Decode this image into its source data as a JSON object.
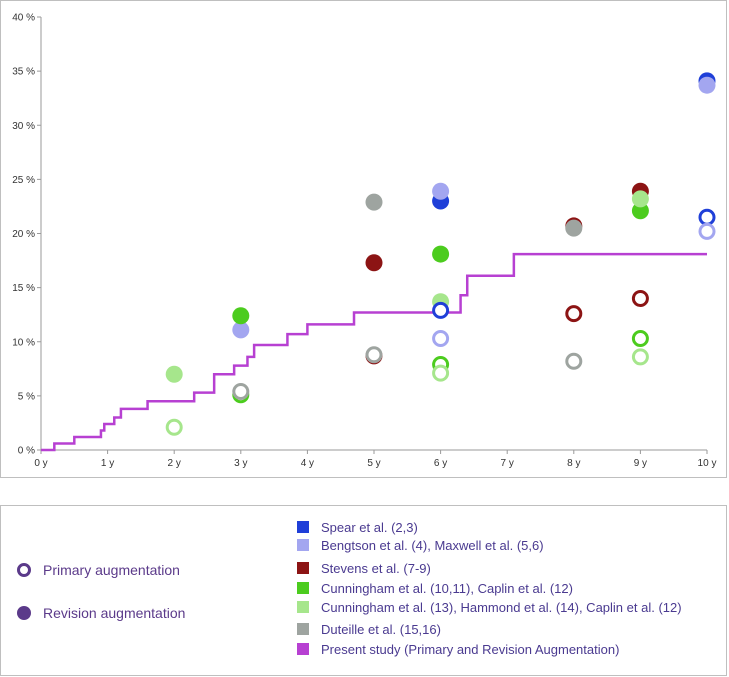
{
  "chart_data": {
    "type": "scatter",
    "x_ticks": [
      "0 y",
      "1 y",
      "2 y",
      "3 y",
      "4 y",
      "5 y",
      "6 y",
      "7 y",
      "8 y",
      "9 y",
      "10 y"
    ],
    "y_ticks": [
      "0 %",
      "5 %",
      "10 %",
      "15 %",
      "20 %",
      "25 %",
      "30 %",
      "35 %",
      "40 %"
    ],
    "xlim": [
      0,
      10
    ],
    "ylim": [
      0,
      40
    ],
    "marker_legend": [
      {
        "label": "Primary augmentation",
        "style": "hollow",
        "color": "#5b3a8a"
      },
      {
        "label": "Revision augmentation",
        "style": "filled",
        "color": "#5b3a8a"
      }
    ],
    "sources": [
      {
        "name": "Spear et al. (2,3)",
        "color": "#1f3fd8",
        "primary": [
          [
            6,
            12.9
          ],
          [
            10,
            21.5
          ]
        ],
        "revision": [
          [
            6,
            23.0
          ],
          [
            10,
            34.1
          ]
        ]
      },
      {
        "name": "Bengtson et al. (4), Maxwell et al. (5,6)",
        "color": "#a3a6f0",
        "primary": [
          [
            6,
            10.3
          ],
          [
            10,
            20.2
          ]
        ],
        "revision": [
          [
            3,
            11.1
          ],
          [
            6,
            23.9
          ],
          [
            10,
            33.7
          ]
        ]
      },
      {
        "name": "Stevens et al. (7-9)",
        "color": "#8c1414",
        "primary": [
          [
            5,
            8.7
          ],
          [
            8,
            12.6
          ],
          [
            9,
            14.0
          ]
        ],
        "revision": [
          [
            5,
            17.3
          ],
          [
            8,
            20.7
          ],
          [
            9,
            23.9
          ]
        ]
      },
      {
        "name": "Cunningham et al. (10,11), Caplin et al. (12)",
        "color": "#4ccc1e",
        "primary": [
          [
            3,
            5.1
          ],
          [
            6,
            7.9
          ],
          [
            9,
            10.3
          ]
        ],
        "revision": [
          [
            3,
            12.4
          ],
          [
            6,
            18.1
          ],
          [
            9,
            22.1
          ]
        ]
      },
      {
        "name": "Cunningham et al. (13), Hammond et al. (14), Caplin et al. (12)",
        "color": "#a6e68c",
        "primary": [
          [
            2,
            2.1
          ],
          [
            6,
            7.1
          ],
          [
            9,
            8.6
          ]
        ],
        "revision": [
          [
            2,
            7.0
          ],
          [
            6,
            13.7
          ],
          [
            9,
            23.2
          ]
        ]
      },
      {
        "name": "Duteille et al. (15,16)",
        "color": "#9ea4a0",
        "primary": [
          [
            3,
            5.4
          ],
          [
            5,
            8.8
          ],
          [
            8,
            8.2
          ]
        ],
        "revision": [
          [
            5,
            22.9
          ],
          [
            8,
            20.5
          ]
        ]
      }
    ],
    "line": {
      "name": "Present study (Primary and Revision Augmentation)",
      "color": "#b740d2",
      "type": "step",
      "points": [
        [
          0,
          0
        ],
        [
          0.2,
          0.6
        ],
        [
          0.5,
          1.2
        ],
        [
          0.9,
          1.8
        ],
        [
          0.95,
          2.4
        ],
        [
          1.1,
          3.0
        ],
        [
          1.2,
          3.8
        ],
        [
          1.6,
          4.5
        ],
        [
          2.3,
          5.3
        ],
        [
          2.6,
          7.0
        ],
        [
          2.9,
          7.8
        ],
        [
          3.1,
          8.6
        ],
        [
          3.2,
          9.7
        ],
        [
          3.7,
          10.7
        ],
        [
          4.0,
          11.6
        ],
        [
          4.7,
          12.7
        ],
        [
          6.3,
          14.3
        ],
        [
          6.4,
          16.1
        ],
        [
          7.1,
          18.1
        ],
        [
          10,
          18.1
        ]
      ]
    },
    "grid": false
  }
}
